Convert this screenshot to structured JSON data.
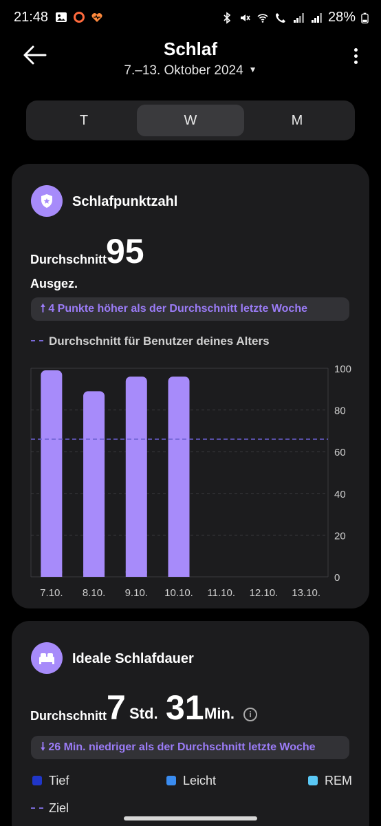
{
  "status_bar": {
    "time": "21:48",
    "battery": "28%",
    "left_icons": [
      "gallery-icon",
      "ring-icon",
      "health-heart-icon"
    ],
    "right_icons": [
      "bluetooth-icon",
      "mute-icon",
      "wifi-call-icon",
      "call-icon",
      "signal-icon",
      "signal-icon-2",
      "battery-icon"
    ]
  },
  "header": {
    "title": "Schlaf",
    "date_range": "7.–13. Oktober 2024"
  },
  "tabs": [
    {
      "label": "T",
      "active": false
    },
    {
      "label": "W",
      "active": true
    },
    {
      "label": "M",
      "active": false
    }
  ],
  "score_card": {
    "title": "Schlafpunktzahl",
    "avg_label": "Durchschnitt",
    "avg_value": "95",
    "rating": "Ausgez.",
    "comparison": "4 Punkte höher als der Durchschnitt letzte Woche",
    "legend": "Durchschnitt für Benutzer deines Alters"
  },
  "chart_data": {
    "type": "bar",
    "categories": [
      "7.10.",
      "8.10.",
      "9.10.",
      "10.10.",
      "11.10.",
      "12.10.",
      "13.10."
    ],
    "values": [
      99,
      89,
      96,
      96,
      null,
      null,
      null
    ],
    "reference_line": 66,
    "ylim": [
      0,
      100
    ],
    "yticks": [
      "100",
      "80",
      "60",
      "40",
      "20",
      "0"
    ],
    "grid": true,
    "bar_color": "#a78bfa",
    "reference_color": "#6b5fd0"
  },
  "duration_card": {
    "title": "Ideale Schlafdauer",
    "avg_label": "Durchschnitt",
    "hours": "7",
    "hours_unit": "Std.",
    "minutes": "31",
    "minutes_unit": "Min.",
    "info": "i",
    "comparison": "26 Min. niedriger als der Durchschnitt letzte Woche",
    "stages": [
      {
        "label": "Tief",
        "color": "#2036c9"
      },
      {
        "label": "Leicht",
        "color": "#3a8cf0"
      },
      {
        "label": "REM",
        "color": "#5ac8f5"
      }
    ],
    "goal_label": "Ziel"
  }
}
